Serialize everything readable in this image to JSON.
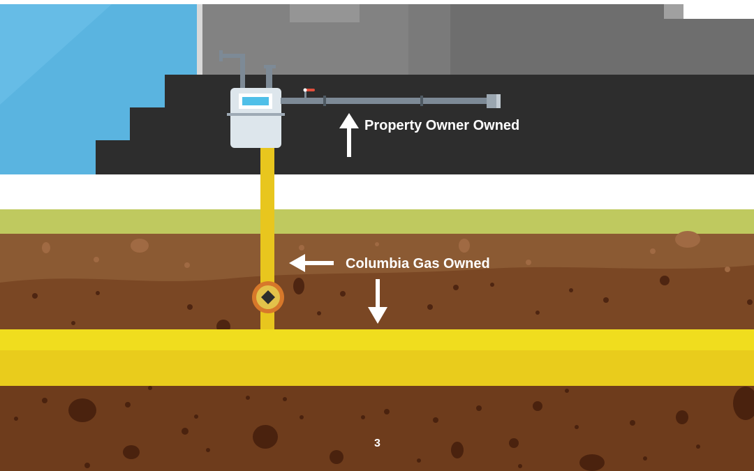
{
  "labels": {
    "property_owner": "Property Owner Owned",
    "columbia_gas": "Columbia Gas Owned",
    "page_number": "3"
  },
  "colors": {
    "sky": "#5ab4e0",
    "house_wall": "#777777",
    "foundation": "#2d2d2d",
    "grass": "#bfc95f",
    "soil_upper": "#8b5a33",
    "soil_lower": "#6e3c1c",
    "gas_main": "#ecd81b",
    "service_line": "#e8c61e",
    "meter_body": "#dde6ec",
    "meter_display": "#4fbfe8",
    "house_pipe": "#7d8a96",
    "curb_valve_ring": "#d7782a"
  },
  "icons": [
    "gas-meter-icon",
    "curb-valve-icon",
    "arrow-up-icon",
    "arrow-left-icon",
    "arrow-down-icon"
  ]
}
